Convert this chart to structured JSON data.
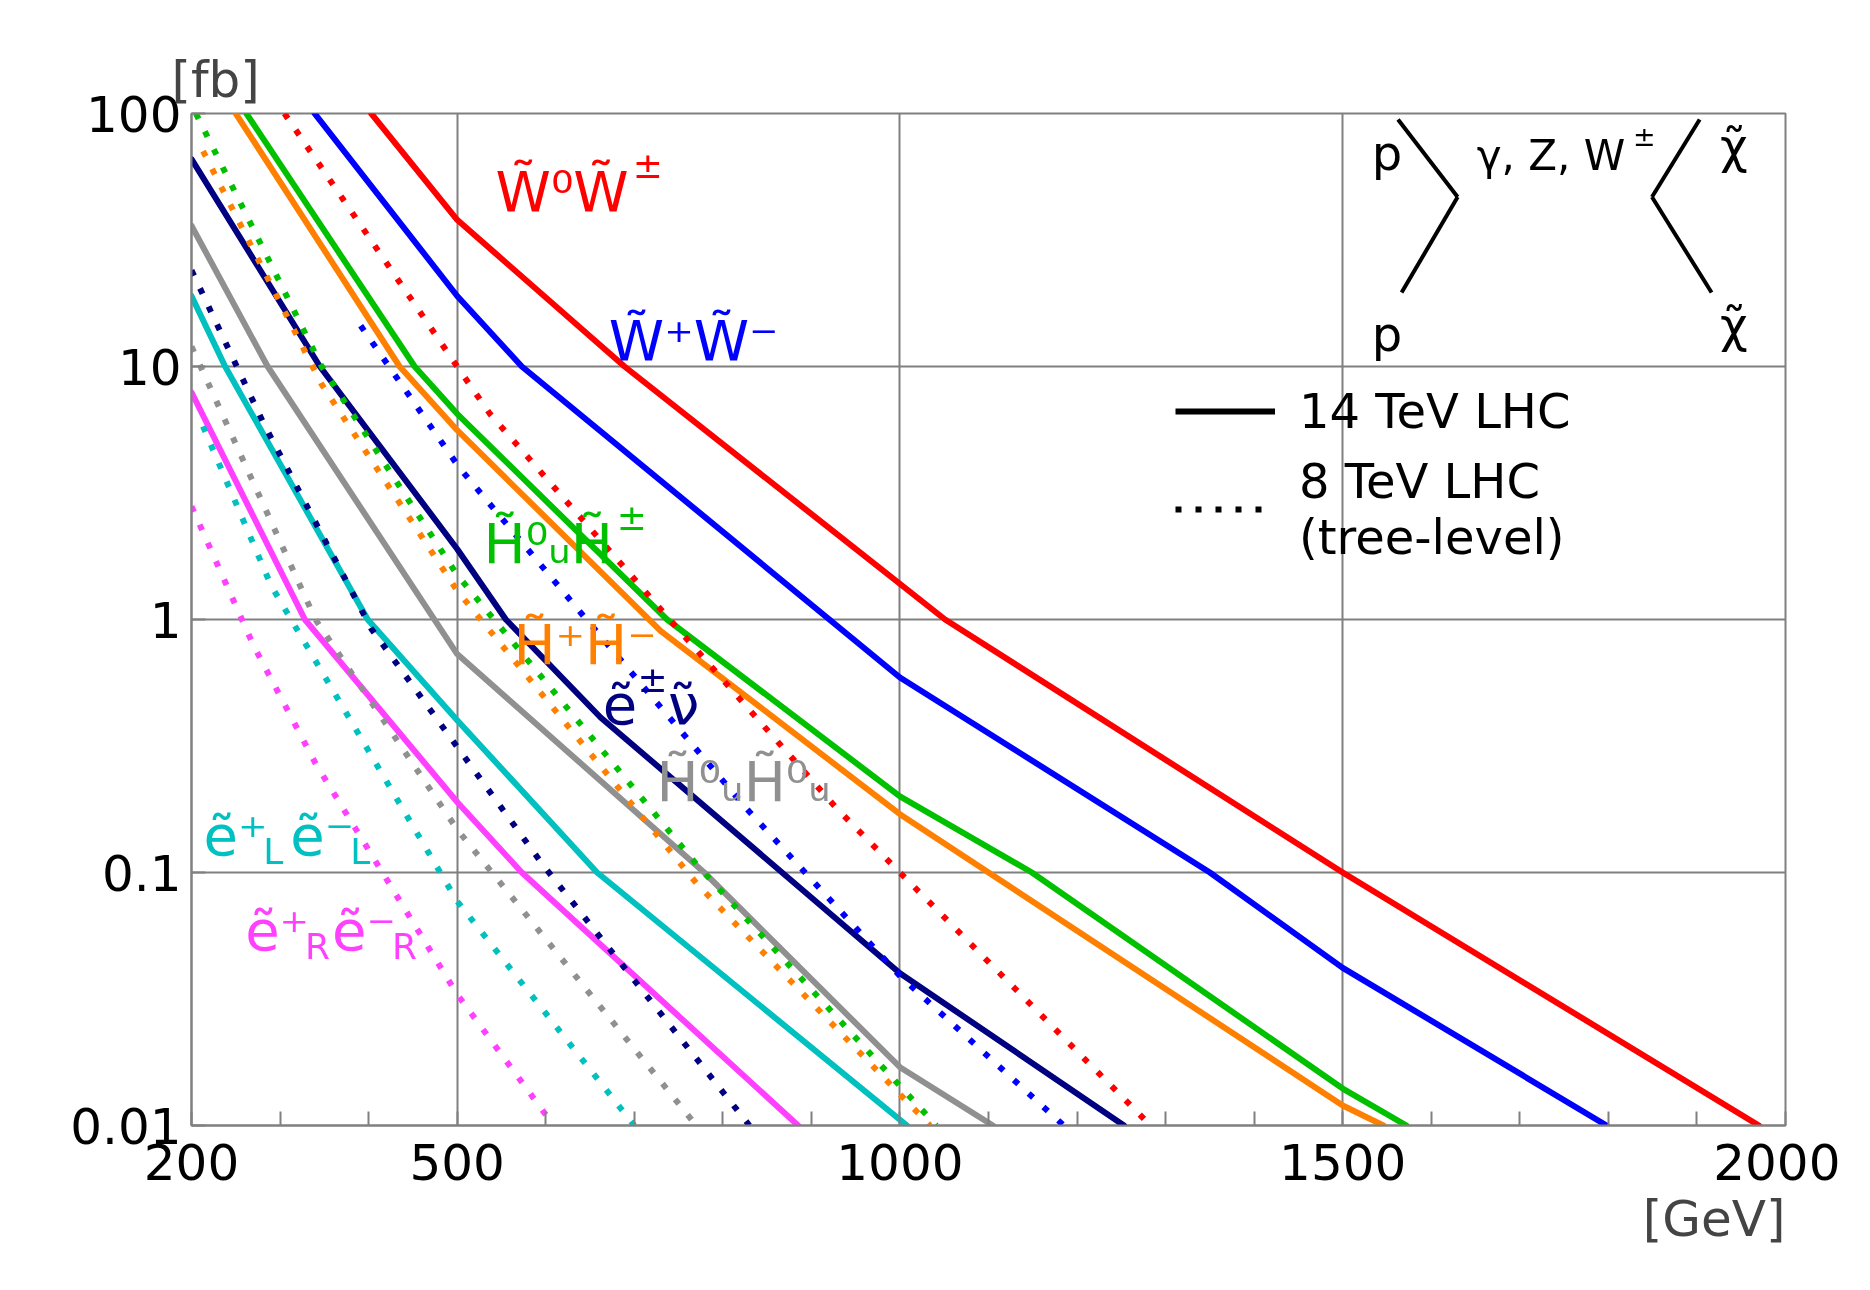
{
  "chart_data": {
    "type": "line",
    "xlabel": "[GeV]",
    "ylabel": "[fb]",
    "log": "y",
    "grid": true,
    "xlim": [
      200,
      2000
    ],
    "ylim": [
      0.01,
      100
    ],
    "xticks": [
      200,
      {
        "value": 300,
        "label": null
      },
      {
        "value": 400,
        "label": null
      },
      500,
      {
        "value": 600,
        "label": null
      },
      {
        "value": 700,
        "label": null
      },
      {
        "value": 800,
        "label": null
      },
      {
        "value": 900,
        "label": null
      },
      1000,
      {
        "value": 1100,
        "label": null
      },
      {
        "value": 1200,
        "label": null
      },
      {
        "value": 1300,
        "label": null
      },
      {
        "value": 1400,
        "label": null
      },
      1500,
      {
        "value": 1600,
        "label": null
      },
      {
        "value": 1700,
        "label": null
      },
      {
        "value": 1800,
        "label": null
      },
      {
        "value": 1900,
        "label": null
      },
      2000
    ],
    "yticks": [
      0.01,
      0.1,
      1,
      10,
      100
    ],
    "series": [
      {
        "name": "W̃⁰W̃$^{±}$",
        "color": "#ff0000",
        "line_style": "solid",
        "x": [
          403,
          500,
          689,
          1051,
          1500,
          1970
        ],
        "values": [
          100,
          38,
          10,
          1,
          0.1,
          0.01
        ]
      },
      {
        "name": "W̃⁺W̃⁻",
        "color": "#0000ff",
        "line_style": "solid",
        "x": [
          339,
          500,
          573,
          1000,
          1350,
          1500,
          1798
        ],
        "values": [
          100,
          19,
          10,
          0.59,
          0.1,
          0.042,
          0.01
        ]
      },
      {
        "name": "H̃⁰ᵤH̃$^{±}$",
        "color": "#00c000",
        "line_style": "solid",
        "x": [
          262,
          452,
          500,
          737,
          1000,
          1149,
          1500,
          1572
        ],
        "values": [
          100,
          10,
          6.5,
          1,
          0.2,
          0.1,
          0.014,
          0.01
        ]
      },
      {
        "name": "H̃⁺H̃⁻",
        "color": "#ff8000",
        "line_style": "solid",
        "x": [
          250,
          435,
          500,
          730,
          1000,
          1500,
          1546
        ],
        "values": [
          100,
          10,
          5.6,
          0.9,
          0.17,
          0.012,
          0.01
        ]
      },
      {
        "name": "ẽ$^{±}$ν̃",
        "color": "#000080",
        "line_style": "solid",
        "x": [
          200,
          345,
          500,
          555,
          662,
          1000,
          1253
        ],
        "values": [
          66,
          10,
          1.9,
          1,
          0.41,
          0.04,
          0.01
        ]
      },
      {
        "name": "H̃⁰ᵤH̃⁰ᵤ",
        "color": "#909090",
        "line_style": "solid",
        "x": [
          200,
          286,
          500,
          779,
          1000,
          1105
        ],
        "values": [
          36,
          10,
          0.73,
          0.1,
          0.017,
          0.01
        ]
      },
      {
        "name": "ẽ⁺$_{L}$ẽ⁻$_{L}$",
        "color": "#00c0c0",
        "line_style": "solid",
        "x": [
          200,
          238,
          399,
          500,
          658,
          1008
        ],
        "values": [
          19,
          10,
          1,
          0.4,
          0.1,
          0.01
        ]
      },
      {
        "name": "ẽ⁺$_{R}$ẽ⁻$_{R}$",
        "color": "#ff40ff",
        "line_style": "solid",
        "x": [
          200,
          328,
          500,
          573,
          885
        ],
        "values": [
          7.9,
          1,
          0.19,
          0.1,
          0.01
        ]
      },
      {
        "color": "#ff0000",
        "line_style": "dotted",
        "x": [
          305,
          500,
          537,
          740,
          928,
          1000,
          1283
        ],
        "values": [
          100,
          10,
          6.5,
          1,
          0.18,
          0.1,
          0.01
        ]
      },
      {
        "color": "#0000ff",
        "line_style": "dotted",
        "x": [
          391,
          502,
          646,
          826,
          1000,
          1185
        ],
        "values": [
          14.5,
          4,
          1,
          0.18,
          0.039,
          0.01
        ]
      },
      {
        "color": "#00c000",
        "line_style": "dotted",
        "x": [
          205,
          347,
          500,
          771,
          1041
        ],
        "values": [
          100,
          10,
          1.5,
          0.107,
          0.01
        ]
      },
      {
        "color": "#ff8000",
        "line_style": "dotted",
        "x": [
          213,
          347,
          500,
          771,
          1034
        ],
        "values": [
          71,
          8.5,
          1.3,
          0.09,
          0.01
        ]
      },
      {
        "color": "#000080",
        "line_style": "dotted",
        "x": [
          200,
          282,
          403,
          597,
          830
        ],
        "values": [
          24,
          5.9,
          0.92,
          0.107,
          0.01
        ]
      },
      {
        "color": "#909090",
        "line_style": "dotted",
        "x": [
          200,
          340,
          500,
          770
        ],
        "values": [
          12,
          1,
          0.148,
          0.01
        ]
      },
      {
        "color": "#00c0c0",
        "line_style": "dotted",
        "x": [
          213,
          290,
          500,
          700
        ],
        "values": [
          5.8,
          1.36,
          0.077,
          0.01
        ]
      },
      {
        "color": "#ff40ff",
        "line_style": "dotted",
        "x": [
          200,
          270,
          340,
          500,
          609
        ],
        "values": [
          2.8,
          0.79,
          0.27,
          0.033,
          0.01
        ]
      }
    ],
    "annotations": [
      "14 TeV LHC",
      "8 TeV LHC\n(tree-level)",
      "p",
      "p",
      "γ, Z, W$^{±}$",
      "χ̃",
      "χ̃"
    ]
  }
}
